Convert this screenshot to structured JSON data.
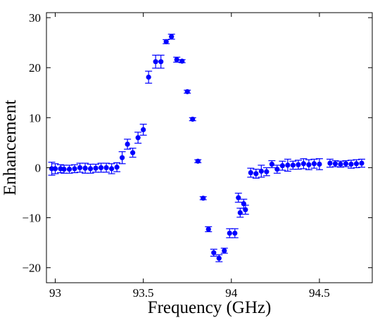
{
  "chart_data": {
    "type": "scatter",
    "title": "",
    "xlabel": "Frequency (GHz)",
    "ylabel": "Enhancement",
    "xlim": [
      92.95,
      94.8
    ],
    "ylim": [
      -23,
      31
    ],
    "xticks": [
      93,
      93.5,
      94,
      94.5
    ],
    "xtick_labels": [
      "93",
      "93.5",
      "94",
      "94.5"
    ],
    "yticks": [
      -20,
      -10,
      0,
      10,
      20,
      30
    ],
    "ytick_labels": [
      "−20",
      "−10",
      "0",
      "10",
      "20",
      "30"
    ],
    "grid": false,
    "legend": "none",
    "marker_color": "#0000ff",
    "series": [
      {
        "marker": "circle",
        "error_bars": true,
        "points": [
          {
            "x": 92.98,
            "y": -0.2,
            "err": 1.3
          },
          {
            "x": 93.0,
            "y": -0.2,
            "err": 1.0
          },
          {
            "x": 93.03,
            "y": -0.2,
            "err": 0.8
          },
          {
            "x": 93.05,
            "y": -0.3,
            "err": 0.8
          },
          {
            "x": 93.08,
            "y": -0.3,
            "err": 0.8
          },
          {
            "x": 93.11,
            "y": -0.2,
            "err": 0.8
          },
          {
            "x": 93.14,
            "y": 0.0,
            "err": 0.9
          },
          {
            "x": 93.17,
            "y": -0.1,
            "err": 1.0
          },
          {
            "x": 93.2,
            "y": -0.2,
            "err": 0.9
          },
          {
            "x": 93.23,
            "y": -0.1,
            "err": 0.8
          },
          {
            "x": 93.26,
            "y": 0.0,
            "err": 0.9
          },
          {
            "x": 93.29,
            "y": 0.0,
            "err": 0.9
          },
          {
            "x": 93.32,
            "y": -0.2,
            "err": 1.0
          },
          {
            "x": 93.35,
            "y": 0.1,
            "err": 0.9
          },
          {
            "x": 93.38,
            "y": 2.0,
            "err": 1.2
          },
          {
            "x": 93.41,
            "y": 4.7,
            "err": 1.0
          },
          {
            "x": 93.44,
            "y": 3.0,
            "err": 0.9
          },
          {
            "x": 93.47,
            "y": 6.0,
            "err": 1.1
          },
          {
            "x": 93.5,
            "y": 7.6,
            "err": 1.1
          },
          {
            "x": 93.53,
            "y": 18.1,
            "err": 1.2
          },
          {
            "x": 93.57,
            "y": 21.2,
            "err": 1.3
          },
          {
            "x": 93.6,
            "y": 21.2,
            "err": 1.3
          },
          {
            "x": 93.63,
            "y": 25.2,
            "err": 0.4
          },
          {
            "x": 93.66,
            "y": 26.2,
            "err": 0.5
          },
          {
            "x": 93.69,
            "y": 21.6,
            "err": 0.5
          },
          {
            "x": 93.72,
            "y": 21.3,
            "err": 0.3
          },
          {
            "x": 93.75,
            "y": 15.2,
            "err": 0.3
          },
          {
            "x": 93.78,
            "y": 9.7,
            "err": 0.3
          },
          {
            "x": 93.81,
            "y": 1.3,
            "err": 0.3
          },
          {
            "x": 93.84,
            "y": -6.1,
            "err": 0.3
          },
          {
            "x": 93.87,
            "y": -12.3,
            "err": 0.5
          },
          {
            "x": 93.9,
            "y": -17.0,
            "err": 0.7
          },
          {
            "x": 93.93,
            "y": -18.1,
            "err": 0.7
          },
          {
            "x": 93.96,
            "y": -16.6,
            "err": 0.5
          },
          {
            "x": 93.99,
            "y": -13.1,
            "err": 0.9
          },
          {
            "x": 94.02,
            "y": -13.1,
            "err": 0.9
          },
          {
            "x": 94.04,
            "y": -6.0,
            "err": 0.9
          },
          {
            "x": 94.05,
            "y": -9.0,
            "err": 0.9
          },
          {
            "x": 94.07,
            "y": -7.2,
            "err": 0.9
          },
          {
            "x": 94.08,
            "y": -8.4,
            "err": 0.9
          },
          {
            "x": 94.11,
            "y": -1.0,
            "err": 0.9
          },
          {
            "x": 94.14,
            "y": -1.2,
            "err": 0.9
          },
          {
            "x": 94.17,
            "y": -0.7,
            "err": 1.2
          },
          {
            "x": 94.2,
            "y": -0.8,
            "err": 0.8
          },
          {
            "x": 94.23,
            "y": 0.7,
            "err": 0.7
          },
          {
            "x": 94.26,
            "y": -0.3,
            "err": 0.8
          },
          {
            "x": 94.29,
            "y": 0.4,
            "err": 0.9
          },
          {
            "x": 94.32,
            "y": 0.5,
            "err": 1.2
          },
          {
            "x": 94.35,
            "y": 0.5,
            "err": 0.8
          },
          {
            "x": 94.38,
            "y": 0.6,
            "err": 0.9
          },
          {
            "x": 94.41,
            "y": 0.8,
            "err": 1.0
          },
          {
            "x": 94.44,
            "y": 0.6,
            "err": 1.0
          },
          {
            "x": 94.47,
            "y": 0.8,
            "err": 0.9
          },
          {
            "x": 94.5,
            "y": 0.7,
            "err": 1.1
          },
          {
            "x": 94.56,
            "y": 0.9,
            "err": 0.8
          },
          {
            "x": 94.59,
            "y": 0.8,
            "err": 0.6
          },
          {
            "x": 94.62,
            "y": 0.7,
            "err": 0.6
          },
          {
            "x": 94.65,
            "y": 0.8,
            "err": 0.6
          },
          {
            "x": 94.68,
            "y": 0.7,
            "err": 0.8
          },
          {
            "x": 94.71,
            "y": 0.8,
            "err": 0.8
          },
          {
            "x": 94.74,
            "y": 0.9,
            "err": 0.8
          }
        ]
      }
    ]
  }
}
